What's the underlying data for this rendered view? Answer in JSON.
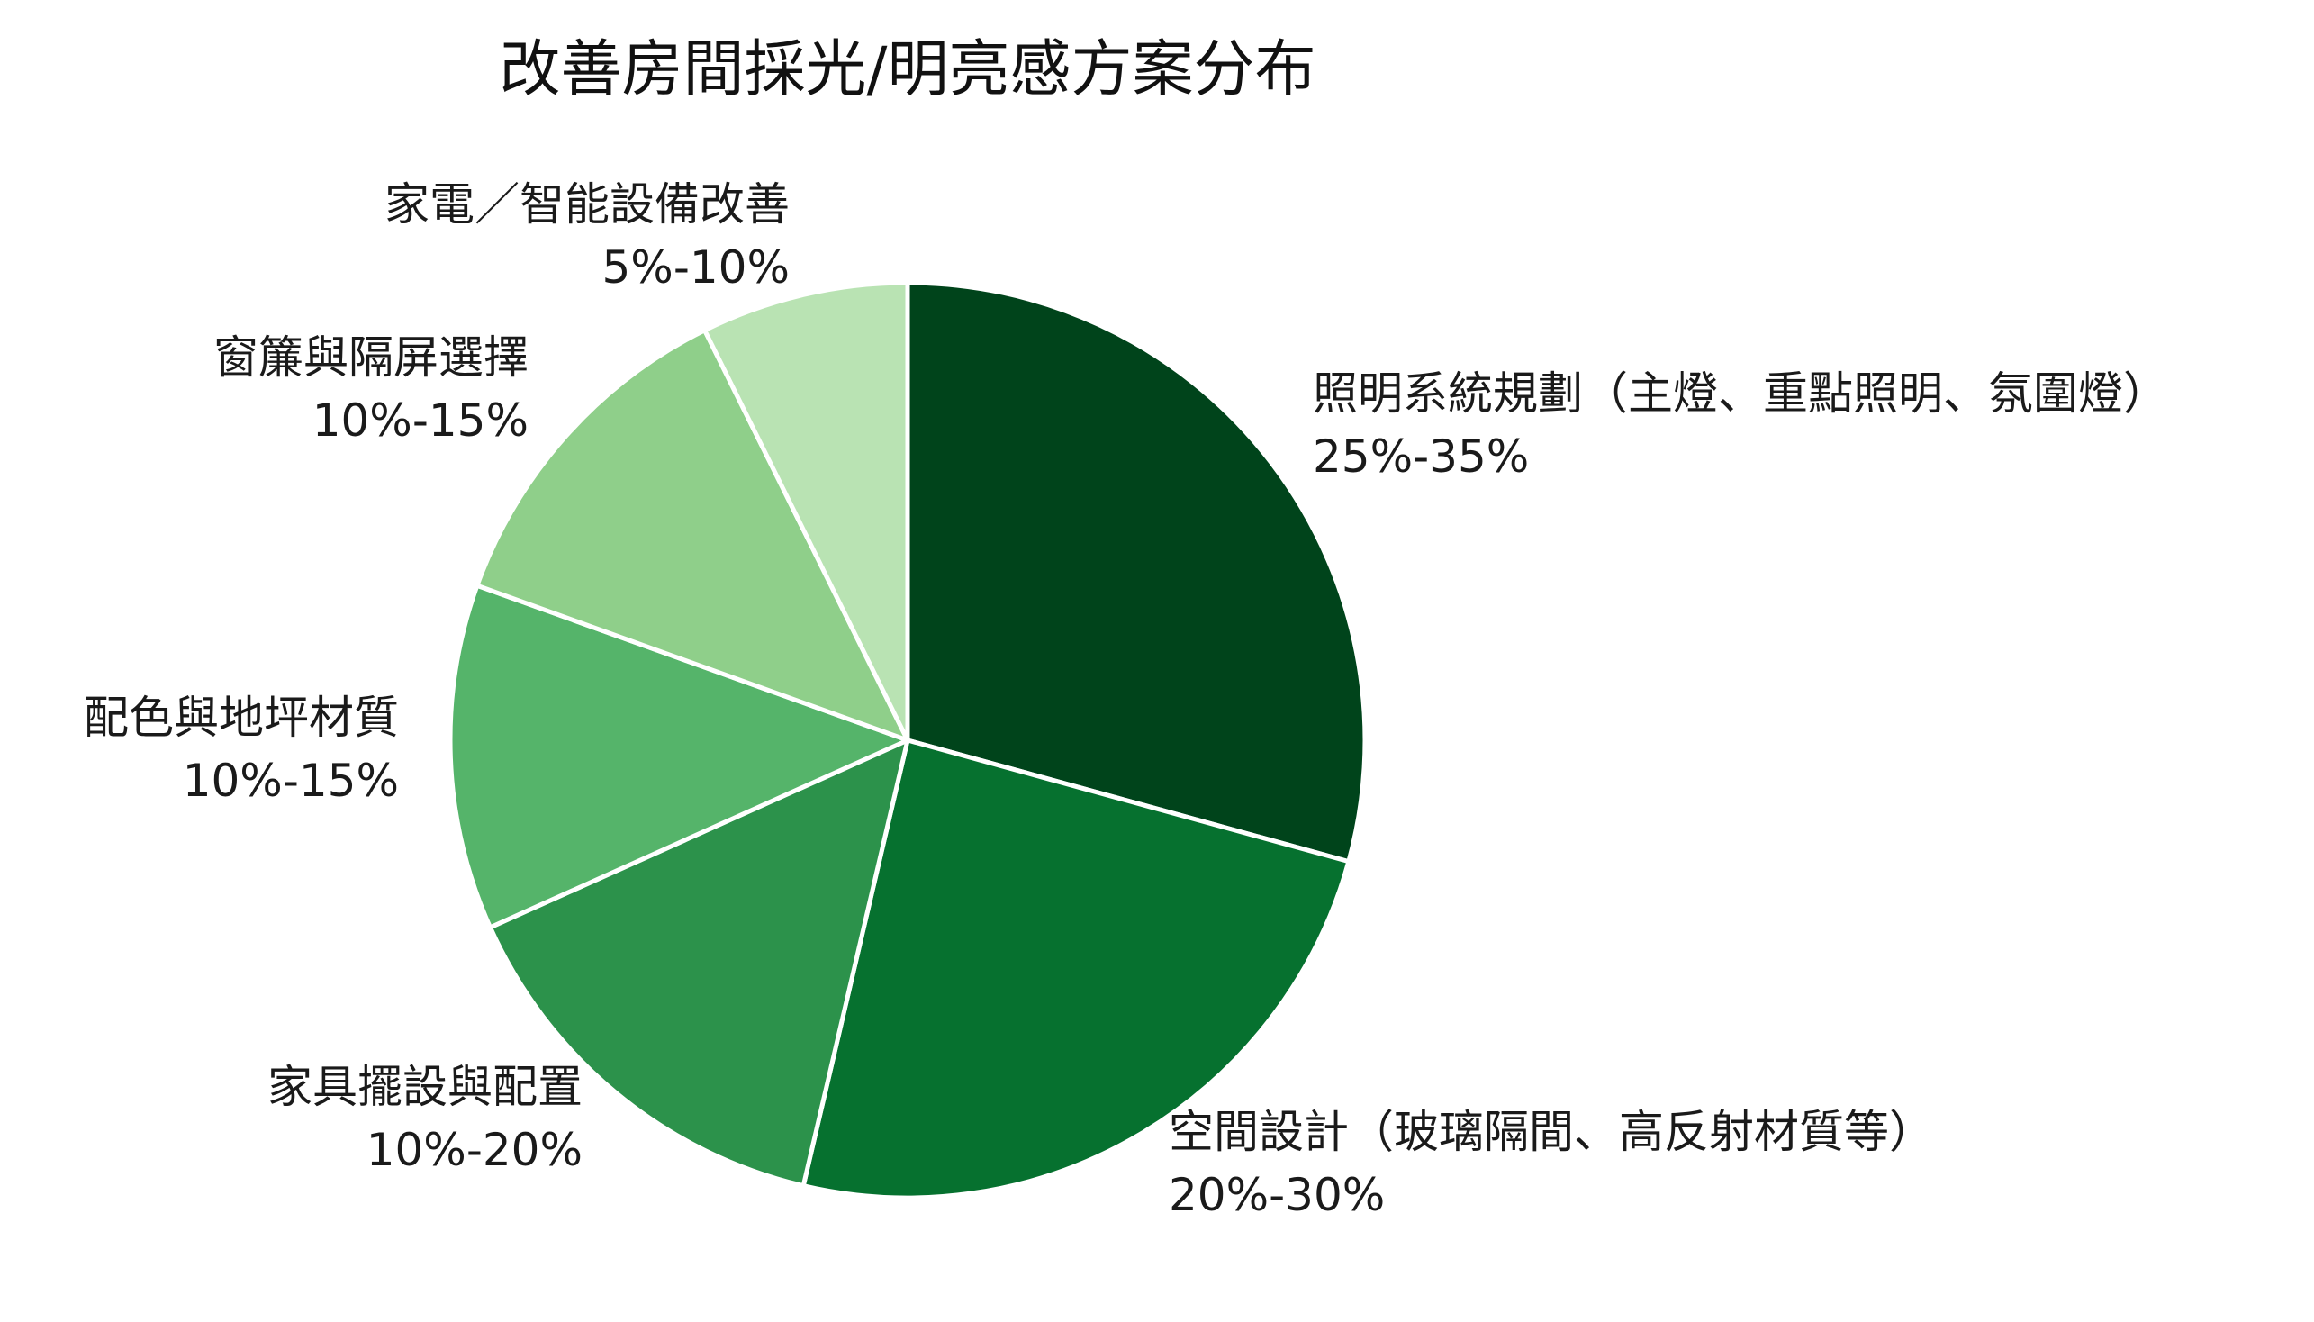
{
  "chart_data": {
    "type": "pie",
    "title": "改善房間採光/明亮感方案分布",
    "start_angle": "top, clockwise",
    "slices": [
      {
        "label": "照明系統規劃（主燈、重點照明、氛圍燈）",
        "range": "25%-35%",
        "value": 30,
        "color": "#00441b"
      },
      {
        "label": "空間設計（玻璃隔間、高反射材質等）",
        "range": "20%-30%",
        "value": 25,
        "color": "#06712f"
      },
      {
        "label": "家具擺設與配置",
        "range": "10%-20%",
        "value": 15,
        "color": "#2c924b"
      },
      {
        "label": "配色與地坪材質",
        "range": "10%-15%",
        "value": 12.5,
        "color": "#55b46a"
      },
      {
        "label": "窗簾與隔屏選擇",
        "range": "10%-15%",
        "value": 12.5,
        "color": "#8fcf8a"
      },
      {
        "label": "家電／智能設備改善",
        "range": "5%-10%",
        "value": 7.5,
        "color": "#b9e3b3"
      }
    ],
    "edge_color": "#ffffff",
    "legend": "none",
    "xlabel": "",
    "ylabel": ""
  }
}
